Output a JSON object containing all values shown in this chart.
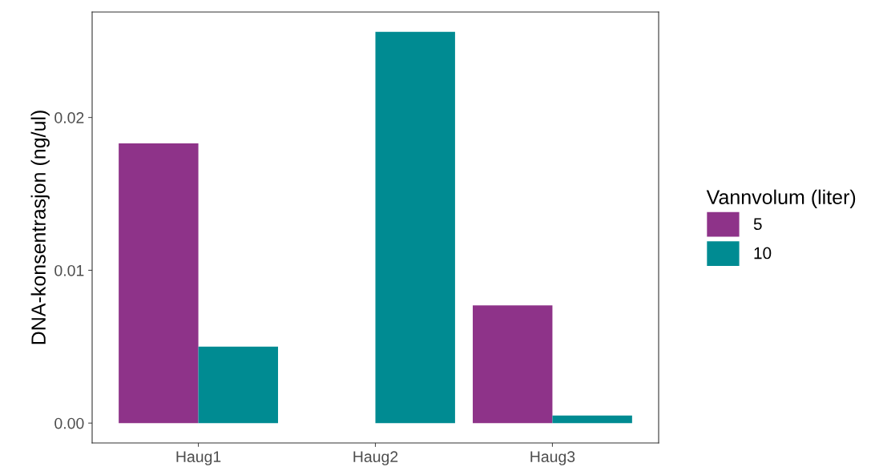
{
  "chart_data": {
    "type": "bar",
    "ylabel": "DNA-konsentrasjon (ng/ul)",
    "legend_title": "Vannvolum (liter)",
    "categories": [
      "Haug1",
      "Haug2",
      "Haug3"
    ],
    "series": [
      {
        "name": "5",
        "color": "#8e3389",
        "values": [
          0.0183,
          null,
          0.0077
        ]
      },
      {
        "name": "10",
        "color": "#008b92",
        "values": [
          0.005,
          0.0256,
          0.0005
        ]
      }
    ],
    "ylim": [
      -0.0013,
      0.0269
    ],
    "yticks": [
      {
        "value": 0,
        "label": "0.00"
      },
      {
        "value": 0.01,
        "label": "0.01"
      },
      {
        "value": 0.02,
        "label": "0.02"
      }
    ],
    "grid": false,
    "legend": "right"
  }
}
